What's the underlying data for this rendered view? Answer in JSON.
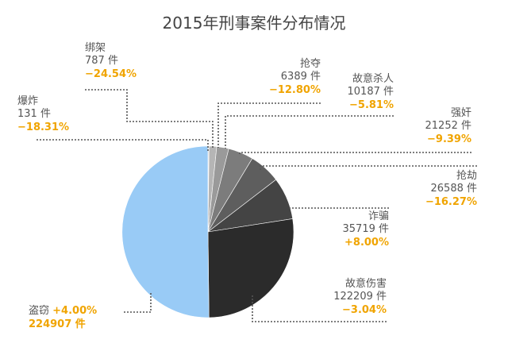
{
  "chart_data": {
    "type": "pie",
    "title": "2015年刑事案件分布情况",
    "unit": "件",
    "categories": [
      "盗窃",
      "爆炸",
      "绑架",
      "抢夺",
      "故意杀人",
      "强奸",
      "抢劫",
      "诈骗",
      "故意伤害"
    ],
    "values": [
      224907,
      131,
      787,
      6389,
      10187,
      21252,
      26588,
      35719,
      122209
    ],
    "series": [
      {
        "values": [
          224907,
          131,
          787,
          6389,
          10187,
          21252,
          26588,
          35719,
          122209
        ]
      }
    ],
    "slices": [
      {
        "name": "盗窃",
        "value": 224907,
        "count_text": "224907 件",
        "change": "+4.00%",
        "color": "#99cbf6"
      },
      {
        "name": "爆炸",
        "value": 131,
        "count_text": "131 件",
        "change": "−18.31%",
        "color": "#d8d8d8"
      },
      {
        "name": "绑架",
        "value": 787,
        "count_text": "787 件",
        "change": "−24.54%",
        "color": "#d2d2d2"
      },
      {
        "name": "抢夺",
        "value": 6389,
        "count_text": "6389 件",
        "change": "−12.80%",
        "color": "#b5b5b5"
      },
      {
        "name": "故意杀人",
        "value": 10187,
        "count_text": "10187 件",
        "change": "−5.81%",
        "color": "#9a9a9a"
      },
      {
        "name": "强奸",
        "value": 21252,
        "count_text": "21252 件",
        "change": "−9.39%",
        "color": "#7c7c7c"
      },
      {
        "name": "抢劫",
        "value": 26588,
        "count_text": "26588 件",
        "change": "−16.27%",
        "color": "#5e5e5e"
      },
      {
        "name": "诈骗",
        "value": 35719,
        "count_text": "35719 件",
        "change": "+8.00%",
        "color": "#444444"
      },
      {
        "name": "故意伤害",
        "value": 122209,
        "count_text": "122209 件",
        "change": "−3.04%",
        "color": "#2b2b2b"
      }
    ],
    "change_color": "#f0a400",
    "leader_color": "#555555"
  }
}
